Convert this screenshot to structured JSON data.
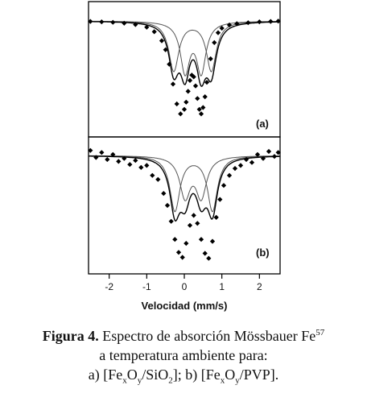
{
  "chart_data": {
    "type": "scatter",
    "xlabel": "Velocidad (mm/s)",
    "xlim": [
      -2.55,
      2.55
    ],
    "xticks": [
      -2,
      -1,
      0,
      1,
      2
    ],
    "panels": [
      {
        "label": "(a)",
        "components": [
          {
            "center": -0.28,
            "width": 0.32,
            "depth": 0.55
          },
          {
            "center": 0.72,
            "width": 0.32,
            "depth": 0.55
          },
          {
            "center": 0.02,
            "width": 0.3,
            "depth": 0.55
          },
          {
            "center": 0.45,
            "width": 0.3,
            "depth": 0.55
          }
        ],
        "data_points": {
          "x": [
            -2.5,
            -2.2,
            -1.9,
            -1.6,
            -1.3,
            -1.0,
            -0.8,
            -0.6,
            -0.5,
            -0.4,
            -0.3,
            -0.2,
            -0.1,
            0.0,
            0.05,
            0.1,
            0.15,
            0.2,
            0.25,
            0.3,
            0.35,
            0.4,
            0.45,
            0.5,
            0.55,
            0.6,
            0.7,
            0.8,
            0.9,
            1.0,
            1.2,
            1.4,
            1.7,
            2.0,
            2.3,
            2.5
          ],
          "y": [
            -0.005,
            -0.01,
            -0.015,
            -0.025,
            -0.04,
            -0.07,
            -0.12,
            -0.22,
            -0.32,
            -0.48,
            -0.7,
            -0.92,
            -1.03,
            -0.98,
            -0.9,
            -0.78,
            -0.66,
            -0.6,
            -0.62,
            -0.72,
            -0.86,
            -0.98,
            -1.03,
            -0.96,
            -0.84,
            -0.68,
            -0.42,
            -0.24,
            -0.13,
            -0.08,
            -0.045,
            -0.03,
            -0.02,
            -0.01,
            -0.005,
            -0.002
          ]
        }
      },
      {
        "label": "(b)",
        "components": [
          {
            "center": -0.25,
            "width": 0.32,
            "depth": 0.55
          },
          {
            "center": 0.75,
            "width": 0.32,
            "depth": 0.55
          },
          {
            "center": 0.02,
            "width": 0.34,
            "depth": 0.4
          },
          {
            "center": 0.45,
            "width": 0.34,
            "depth": 0.4
          }
        ],
        "data_points": {
          "x": [
            -2.5,
            -2.35,
            -2.2,
            -2.05,
            -1.9,
            -1.75,
            -1.6,
            -1.45,
            -1.3,
            -1.15,
            -1.0,
            -0.85,
            -0.7,
            -0.55,
            -0.45,
            -0.35,
            -0.25,
            -0.15,
            -0.05,
            0.05,
            0.15,
            0.25,
            0.35,
            0.45,
            0.55,
            0.65,
            0.75,
            0.85,
            0.95,
            1.05,
            1.2,
            1.35,
            1.5,
            1.65,
            1.8,
            1.95,
            2.1,
            2.25,
            2.4,
            2.5
          ],
          "y": [
            0.05,
            -0.02,
            0.03,
            -0.04,
            0.01,
            -0.06,
            -0.03,
            -0.09,
            -0.05,
            -0.12,
            -0.1,
            -0.2,
            -0.24,
            -0.38,
            -0.5,
            -0.66,
            -0.84,
            -0.97,
            -1.02,
            -0.88,
            -0.7,
            -0.6,
            -0.68,
            -0.84,
            -0.98,
            -1.03,
            -0.86,
            -0.62,
            -0.44,
            -0.3,
            -0.2,
            -0.13,
            -0.1,
            -0.04,
            -0.07,
            0.01,
            -0.03,
            0.04,
            -0.01,
            0.03
          ]
        }
      }
    ]
  },
  "caption": {
    "figura": "Figura 4.",
    "line1": "Espectro de absorción Mössbauer Fe",
    "sup57": "57",
    "line2": "a temperatura ambiente para:",
    "a_pre": "a) [Fe",
    "x": "x",
    "O": "O",
    "y": "y",
    "a_sio": "/SiO",
    "two": "2",
    "a_end": "]; b) [Fe",
    "b_mid": "/PVP]."
  }
}
